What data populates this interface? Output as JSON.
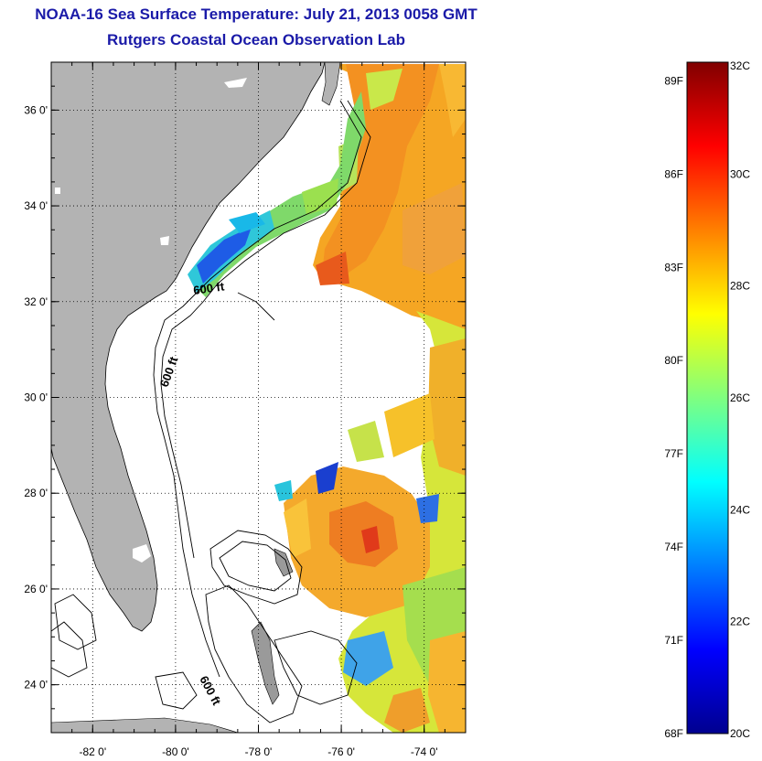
{
  "title": "NOAA-16 Sea Surface Temperature:  July 21, 2013 0058 GMT",
  "subtitle": "Rutgers Coastal Ocean Observation Lab",
  "map": {
    "lon_range": [
      -83,
      -73
    ],
    "lat_range": [
      23,
      37
    ],
    "lat_ticks": [
      {
        "value": 36,
        "label": "36 0'"
      },
      {
        "value": 34,
        "label": "34 0'"
      },
      {
        "value": 32,
        "label": "32 0'"
      },
      {
        "value": 30,
        "label": "30 0'"
      },
      {
        "value": 28,
        "label": "28 0'"
      },
      {
        "value": 26,
        "label": "26 0'"
      },
      {
        "value": 24,
        "label": "24 0'"
      }
    ],
    "lon_ticks": [
      {
        "value": -82,
        "label": "-82 0'"
      },
      {
        "value": -80,
        "label": "-80 0'"
      },
      {
        "value": -78,
        "label": "-78 0'"
      },
      {
        "value": -76,
        "label": "-76 0'"
      },
      {
        "value": -74,
        "label": "-74 0'"
      }
    ],
    "depth_labels": [
      "600 ft",
      "600 ft",
      "600 ft"
    ],
    "colors": {
      "land": "#b3b3b3",
      "cloud": "#ffffff",
      "frame": "#000000",
      "grid": "#000000"
    }
  },
  "colorbar": {
    "min_c": 20,
    "max_c": 32,
    "celsius_labels": [
      "32C",
      "30C",
      "28C",
      "26C",
      "24C",
      "22C",
      "20C"
    ],
    "fahrenheit_labels": [
      "89F",
      "86F",
      "83F",
      "80F",
      "77F",
      "74F",
      "71F",
      "68F"
    ]
  }
}
